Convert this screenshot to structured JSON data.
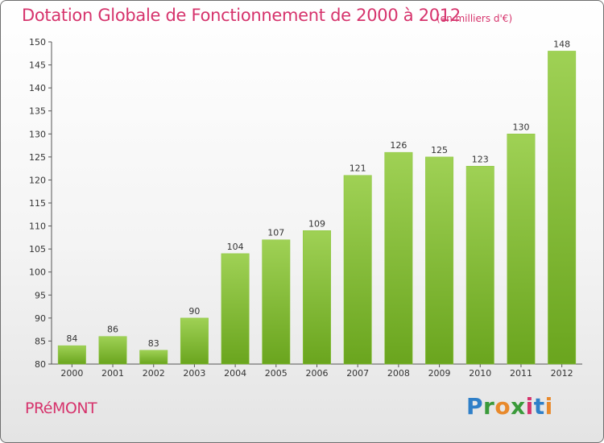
{
  "header": {
    "title": "Dotation Globale de Fonctionnement de 2000 à 2012",
    "subtitle": "(en milliers d'€)"
  },
  "footer": {
    "commune": "PRéMONT",
    "logo_text": "Proxiti"
  },
  "colors": {
    "title": "#d6336c",
    "bar_light": "#9fd155",
    "bar_dark": "#6aa51e"
  },
  "chart_data": {
    "type": "bar",
    "title": "Dotation Globale de Fonctionnement de 2000 à 2012",
    "subtitle": "(en milliers d'€)",
    "xlabel": "",
    "ylabel": "",
    "categories": [
      "2000",
      "2001",
      "2002",
      "2003",
      "2004",
      "2005",
      "2006",
      "2007",
      "2008",
      "2009",
      "2010",
      "2011",
      "2012"
    ],
    "values": [
      84,
      86,
      83,
      90,
      104,
      107,
      109,
      121,
      126,
      125,
      123,
      130,
      148
    ],
    "ylim": [
      80,
      150
    ],
    "yticks": [
      80,
      85,
      90,
      95,
      100,
      105,
      110,
      115,
      120,
      125,
      130,
      135,
      140,
      145,
      150
    ],
    "grid": false,
    "legend": "none"
  }
}
